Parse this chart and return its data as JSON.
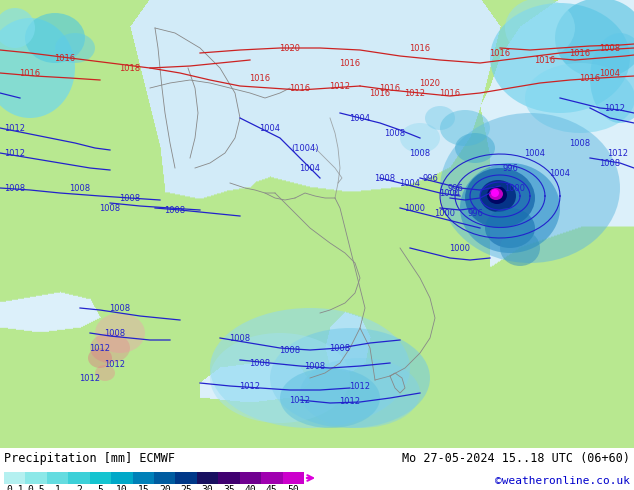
{
  "title_left": "Precipitation [mm] ECMWF",
  "title_right": "Mo 27-05-2024 15..18 UTC (06+60)",
  "credit": "©weatheronline.co.uk",
  "colorbar_labels": [
    "0.1",
    "0.5",
    "1",
    "2",
    "5",
    "10",
    "15",
    "20",
    "25",
    "30",
    "35",
    "40",
    "45",
    "50"
  ],
  "colorbar_colors": [
    "#b4f0f0",
    "#8ce8e8",
    "#64dce0",
    "#3cd0d8",
    "#14c4d0",
    "#00a8c8",
    "#0080b8",
    "#005ca0",
    "#003888",
    "#181060",
    "#400070",
    "#700090",
    "#a000b0",
    "#cc00cc"
  ],
  "arrow_color": "#dd00dd",
  "map_land_color": "#b8e890",
  "map_ocean_color": "#d8eef8",
  "map_bg_color": "#b8e890",
  "bottom_bg": "#ffffff",
  "title_color": "#000000",
  "credit_color": "#0000cc",
  "label_fontsize": 7.5,
  "title_fontsize": 8.5,
  "credit_fontsize": 8,
  "cb_label_fontsize": 7
}
